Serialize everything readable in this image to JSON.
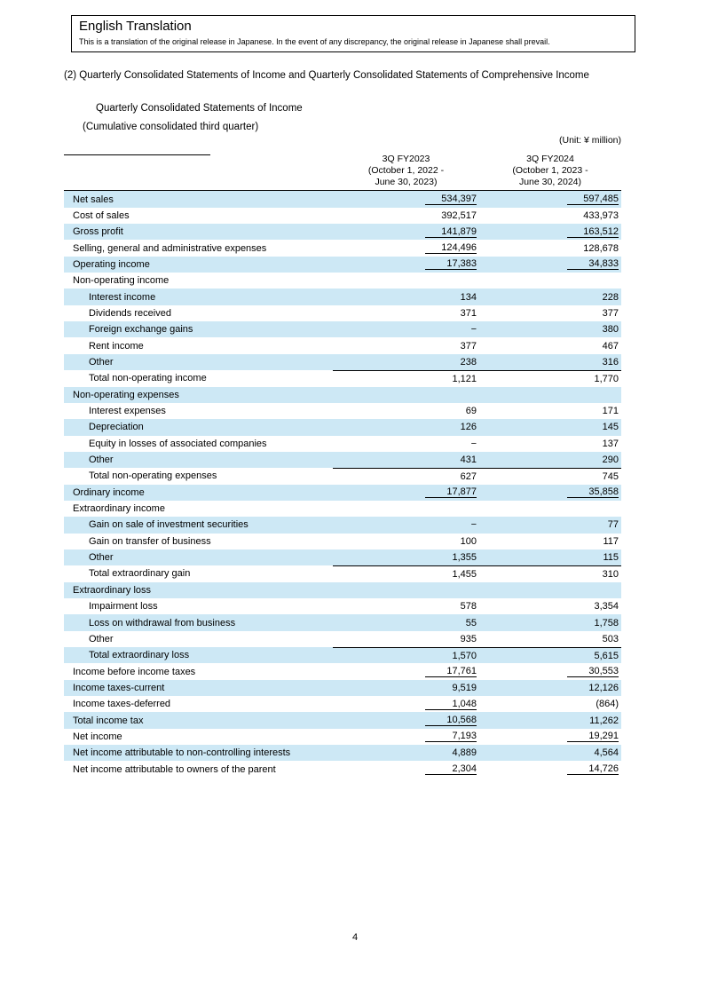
{
  "page": {
    "number": "4"
  },
  "translation_box": {
    "title": "English Translation",
    "note": "This is a translation of the original release in Japanese. In the event of any discrepancy, the original release in Japanese shall prevail."
  },
  "heading": {
    "section": "(2) Quarterly Consolidated Statements of Income and Quarterly Consolidated Statements of Comprehensive Income",
    "subtitle": "Quarterly Consolidated Statements of Income",
    "period_note": "(Cumulative consolidated third quarter)",
    "unit_note": "(Unit: ¥ million)"
  },
  "table": {
    "columns": [
      {
        "lines": [
          "3Q FY2023",
          "(October 1, 2022 -",
          "June 30, 2023)"
        ]
      },
      {
        "lines": [
          "3Q FY2024",
          "(October 1, 2023 -",
          "June 30, 2024)"
        ]
      }
    ],
    "rows": [
      {
        "label": "Net sales",
        "indent": 0,
        "v1": "534,397",
        "v2": "597,485",
        "u1": true,
        "u2": true
      },
      {
        "label": "Cost of sales",
        "indent": 0,
        "v1": "392,517",
        "v2": "433,973"
      },
      {
        "label": "Gross profit",
        "indent": 0,
        "v1": "141,879",
        "v2": "163,512",
        "u1": true,
        "u2": true
      },
      {
        "label": "Selling, general and administrative expenses",
        "indent": 0,
        "v1": "124,496",
        "v2": "128,678",
        "u1": true
      },
      {
        "label": "Operating income",
        "indent": 0,
        "v1": "17,383",
        "v2": "34,833",
        "u1": true,
        "u2": true
      },
      {
        "label": "Non-operating income",
        "indent": 0,
        "v1": "",
        "v2": ""
      },
      {
        "label": "Interest income",
        "indent": 1,
        "v1": "134",
        "v2": "228"
      },
      {
        "label": "Dividends received",
        "indent": 1,
        "v1": "371",
        "v2": "377"
      },
      {
        "label": "Foreign exchange gains",
        "indent": 1,
        "v1": "−",
        "v2": "380"
      },
      {
        "label": "Rent income",
        "indent": 1,
        "v1": "377",
        "v2": "467"
      },
      {
        "label": "Other",
        "indent": 1,
        "v1": "238",
        "v2": "316"
      },
      {
        "label": "Total non-operating income",
        "indent": 1,
        "v1": "1,121",
        "v2": "1,770",
        "topline": true
      },
      {
        "label": "Non-operating expenses",
        "indent": 0,
        "v1": "",
        "v2": ""
      },
      {
        "label": "Interest expenses",
        "indent": 1,
        "v1": "69",
        "v2": "171"
      },
      {
        "label": "Depreciation",
        "indent": 1,
        "v1": "126",
        "v2": "145"
      },
      {
        "label": "Equity in losses of associated companies",
        "indent": 1,
        "v1": "−",
        "v2": "137"
      },
      {
        "label": "Other",
        "indent": 1,
        "v1": "431",
        "v2": "290"
      },
      {
        "label": "Total non-operating expenses",
        "indent": 1,
        "v1": "627",
        "v2": "745",
        "topline": true
      },
      {
        "label": "Ordinary income",
        "indent": 0,
        "v1": "17,877",
        "v2": "35,858",
        "u1": true,
        "u2": true
      },
      {
        "label": "Extraordinary income",
        "indent": 0,
        "v1": "",
        "v2": ""
      },
      {
        "label": "Gain on sale of investment securities",
        "indent": 1,
        "v1": "−",
        "v2": "77"
      },
      {
        "label": "Gain on transfer of business",
        "indent": 1,
        "v1": "100",
        "v2": "117"
      },
      {
        "label": "Other",
        "indent": 1,
        "v1": "1,355",
        "v2": "115"
      },
      {
        "label": "Total extraordinary gain",
        "indent": 1,
        "v1": "1,455",
        "v2": "310",
        "topline": true
      },
      {
        "label": "Extraordinary loss",
        "indent": 0,
        "v1": "",
        "v2": ""
      },
      {
        "label": "Impairment loss",
        "indent": 1,
        "v1": "578",
        "v2": "3,354"
      },
      {
        "label": "Loss on withdrawal from business",
        "indent": 1,
        "v1": "55",
        "v2": "1,758"
      },
      {
        "label": "Other",
        "indent": 1,
        "v1": "935",
        "v2": "503"
      },
      {
        "label": "Total extraordinary loss",
        "indent": 1,
        "v1": "1,570",
        "v2": "5,615",
        "topline": true
      },
      {
        "label": "Income before income taxes",
        "indent": 0,
        "v1": "17,761",
        "v2": "30,553",
        "u1": true,
        "u2": true
      },
      {
        "label": "Income taxes-current",
        "indent": 0,
        "v1": "9,519",
        "v2": "12,126"
      },
      {
        "label": "Income taxes-deferred",
        "indent": 0,
        "v1": "1,048",
        "v2": "(864)",
        "u1": true
      },
      {
        "label": "Total income tax",
        "indent": 0,
        "v1": "10,568",
        "v2": "11,262",
        "u1": true
      },
      {
        "label": "Net income",
        "indent": 0,
        "v1": "7,193",
        "v2": "19,291",
        "u1": true,
        "u2": true
      },
      {
        "label": "Net income attributable to non-controlling interests",
        "indent": 0,
        "v1": "4,889",
        "v2": "4,564"
      },
      {
        "label": "Net income attributable to owners of the parent",
        "indent": 0,
        "v1": "2,304",
        "v2": "14,726",
        "u1": true,
        "u2": true
      }
    ]
  }
}
